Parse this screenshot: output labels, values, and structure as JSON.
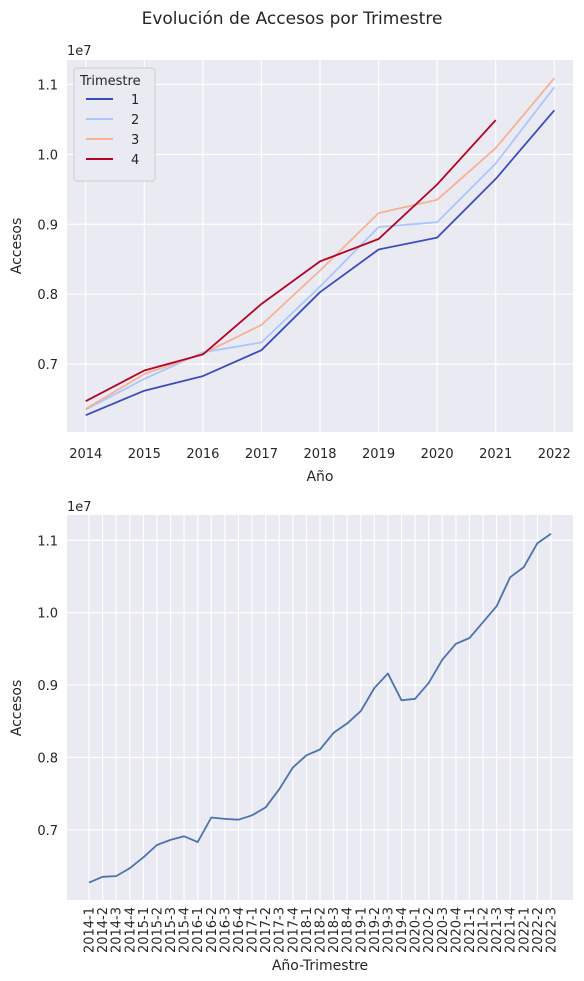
{
  "figure": {
    "title": "Evolución de Accesos por Trimestre",
    "background": "#ffffff",
    "panel_bg": "#eaeaf2",
    "grid_color": "#ffffff"
  },
  "chart_data": [
    {
      "type": "line",
      "xlabel": "Año",
      "ylabel": "Accesos",
      "offset_label": "1e7",
      "x": [
        2014,
        2015,
        2016,
        2017,
        2018,
        2019,
        2020,
        2021,
        2022
      ],
      "xticks": [
        "2014",
        "2015",
        "2016",
        "2017",
        "2018",
        "2019",
        "2020",
        "2021",
        "2022"
      ],
      "yticks": [
        0.7,
        0.8,
        0.9,
        1.0,
        1.1
      ],
      "ytick_labels": [
        "0.7",
        "0.8",
        "0.9",
        "1.0",
        "1.1"
      ],
      "ylim": [
        0.603,
        1.135
      ],
      "grid": true,
      "legend": {
        "title": "Trimestre",
        "placement": "top-left"
      },
      "series": [
        {
          "name": "1",
          "color": "#3b4cc0",
          "values": [
            0.627,
            0.662,
            0.683,
            0.72,
            0.803,
            0.864,
            0.881,
            0.965,
            1.063
          ]
        },
        {
          "name": "2",
          "color": "#aac7fd",
          "values": [
            0.635,
            0.679,
            0.717,
            0.731,
            0.811,
            0.896,
            0.903,
            0.987,
            1.096
          ]
        },
        {
          "name": "3",
          "color": "#f7b194",
          "values": [
            0.636,
            0.686,
            0.715,
            0.756,
            0.834,
            0.916,
            0.935,
            1.009,
            1.109
          ]
        },
        {
          "name": "4",
          "color": "#b40426",
          "values": [
            0.647,
            0.691,
            0.714,
            0.786,
            0.847,
            0.879,
            0.957,
            1.049,
            null
          ]
        }
      ]
    },
    {
      "type": "line",
      "xlabel": "Año-Trimestre",
      "ylabel": "Accesos",
      "offset_label": "1e7",
      "categories": [
        "2014-1",
        "2014-2",
        "2014-3",
        "2014-4",
        "2015-1",
        "2015-2",
        "2015-3",
        "2015-4",
        "2016-1",
        "2016-2",
        "2016-3",
        "2016-4",
        "2017-1",
        "2017-2",
        "2017-3",
        "2017-4",
        "2018-1",
        "2018-2",
        "2018-3",
        "2018-4",
        "2019-1",
        "2019-2",
        "2019-3",
        "2019-4",
        "2020-1",
        "2020-2",
        "2020-3",
        "2020-4",
        "2021-1",
        "2021-2",
        "2021-3",
        "2021-4",
        "2022-1",
        "2022-2",
        "2022-3"
      ],
      "values": [
        0.627,
        0.635,
        0.636,
        0.647,
        0.662,
        0.679,
        0.686,
        0.691,
        0.683,
        0.717,
        0.715,
        0.714,
        0.72,
        0.731,
        0.756,
        0.786,
        0.803,
        0.811,
        0.834,
        0.847,
        0.864,
        0.896,
        0.916,
        0.879,
        0.881,
        0.903,
        0.935,
        0.957,
        0.965,
        0.987,
        1.009,
        1.049,
        1.063,
        1.096,
        1.109
      ],
      "yticks": [
        0.7,
        0.8,
        0.9,
        1.0,
        1.1
      ],
      "ytick_labels": [
        "0.7",
        "0.8",
        "0.9",
        "1.0",
        "1.1"
      ],
      "ylim": [
        0.603,
        1.135
      ],
      "grid": true,
      "color": "#4c72b0"
    }
  ]
}
